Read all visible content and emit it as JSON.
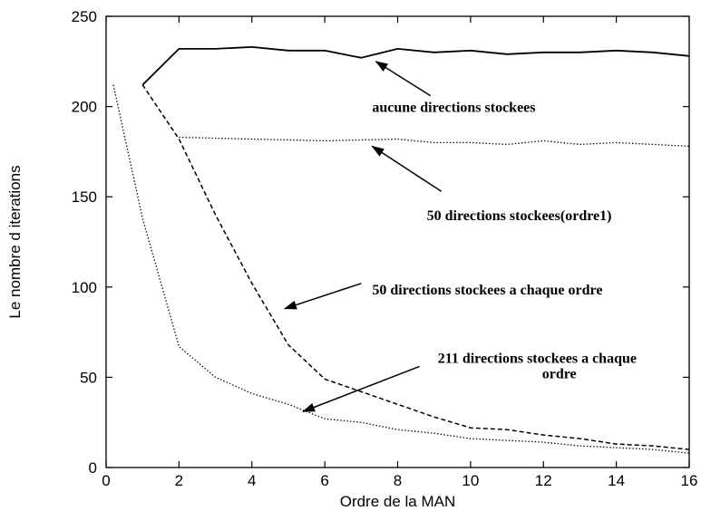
{
  "chart_data": {
    "type": "line",
    "title": "",
    "xlabel": "Ordre de la MAN",
    "ylabel": "Le nombre d iterations",
    "xlim": [
      0,
      16
    ],
    "ylim": [
      0,
      250
    ],
    "xticks": [
      0,
      2,
      4,
      6,
      8,
      10,
      12,
      14,
      16
    ],
    "yticks": [
      0,
      50,
      100,
      150,
      200,
      250
    ],
    "grid": false,
    "legend": "none",
    "series": [
      {
        "style": "solid",
        "x": [
          1,
          2,
          3,
          4,
          5,
          6,
          7,
          8,
          9,
          10,
          11,
          12,
          13,
          14,
          15,
          16
        ],
        "y": [
          212,
          232,
          232,
          233,
          231,
          231,
          227,
          232,
          230,
          231,
          229,
          230,
          230,
          231,
          230,
          228
        ]
      },
      {
        "style": "dotted",
        "x": [
          2,
          4,
          6,
          8,
          9,
          10,
          11,
          12,
          13,
          14,
          15,
          16
        ],
        "y": [
          183,
          182,
          181,
          182,
          180,
          180,
          179,
          181,
          179,
          180,
          179,
          178
        ]
      },
      {
        "style": "dashed",
        "x": [
          1,
          2,
          3,
          4,
          5,
          6,
          7,
          8,
          9,
          10,
          11,
          12,
          13,
          14,
          15,
          16
        ],
        "y": [
          212,
          182,
          140,
          102,
          68,
          49,
          42,
          35,
          28,
          22,
          21,
          18,
          16,
          13,
          12,
          10
        ]
      },
      {
        "style": "dotted",
        "x": [
          0.2,
          1,
          2,
          3,
          4,
          5,
          6,
          7,
          8,
          9,
          10,
          11,
          12,
          13,
          14,
          15,
          16
        ],
        "y": [
          212,
          138,
          67,
          50,
          41,
          35,
          27,
          25,
          21,
          19,
          16,
          15,
          14,
          12,
          11,
          10,
          8
        ]
      }
    ],
    "annotations": [
      {
        "lines": [
          "aucune directions stockees"
        ],
        "text_at": [
          7.3,
          197
        ],
        "arrow_from": [
          8.9,
          206
        ],
        "arrow_to": [
          7.4,
          225
        ]
      },
      {
        "lines": [
          "50 directions stockees(ordre1)"
        ],
        "text_at": [
          8.8,
          137
        ],
        "arrow_from": [
          9.2,
          153
        ],
        "arrow_to": [
          7.3,
          178
        ]
      },
      {
        "lines": [
          "50 directions stockees a chaque ordre"
        ],
        "text_at": [
          7.3,
          96
        ],
        "arrow_from": [
          7.0,
          102
        ],
        "arrow_to": [
          4.9,
          88
        ]
      },
      {
        "lines": [
          "211 directions stockees a chaque",
          "ordre"
        ],
        "text_at": [
          9.1,
          58
        ],
        "arrow_from": [
          8.6,
          56
        ],
        "arrow_to": [
          5.4,
          31
        ]
      }
    ]
  }
}
